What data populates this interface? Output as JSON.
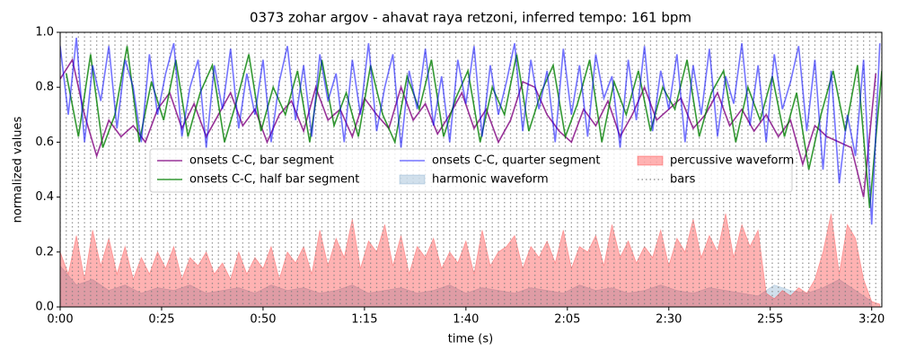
{
  "chart_data": {
    "type": "line",
    "title": "0373 zohar argov - ahavat raya retzoni, inferred tempo: 161 bpm",
    "xlabel": "time (s)",
    "ylabel": "normalized values",
    "xlim": [
      0,
      202.5
    ],
    "ylim": [
      0,
      1
    ],
    "xticks": [
      {
        "value": 0,
        "label": "0:00"
      },
      {
        "value": 25,
        "label": "0:25"
      },
      {
        "value": 50,
        "label": "0:50"
      },
      {
        "value": 75,
        "label": "1:15"
      },
      {
        "value": 100,
        "label": "1:40"
      },
      {
        "value": 125,
        "label": "2:05"
      },
      {
        "value": 150,
        "label": "2:30"
      },
      {
        "value": 175,
        "label": "2:55"
      },
      {
        "value": 200,
        "label": "3:20"
      }
    ],
    "yticks": [
      {
        "value": 0,
        "label": "0.0"
      },
      0.2,
      0.4,
      0.6,
      0.8,
      {
        "value": 1,
        "label": "1.0"
      }
    ],
    "legend": "center",
    "legend_columns": 3,
    "series": [
      {
        "name": "onsets C-C, bar segment",
        "kind": "line",
        "color": "#800080",
        "alpha": 0.8,
        "x": [
          0,
          3,
          6,
          9,
          12,
          15,
          18,
          21,
          24,
          27,
          30,
          33,
          36,
          39,
          42,
          45,
          48,
          51,
          54,
          57,
          60,
          63,
          66,
          69,
          72,
          75,
          78,
          81,
          84,
          87,
          90,
          93,
          96,
          99,
          102,
          105,
          108,
          111,
          114,
          117,
          120,
          123,
          126,
          129,
          132,
          135,
          138,
          141,
          144,
          147,
          150,
          153,
          156,
          159,
          162,
          165,
          168,
          171,
          174,
          177,
          180,
          183,
          186,
          189,
          192,
          195,
          198,
          201
        ],
        "values": [
          0.83,
          0.9,
          0.7,
          0.55,
          0.68,
          0.62,
          0.66,
          0.6,
          0.72,
          0.78,
          0.65,
          0.74,
          0.62,
          0.7,
          0.78,
          0.66,
          0.72,
          0.6,
          0.7,
          0.75,
          0.64,
          0.8,
          0.68,
          0.72,
          0.62,
          0.76,
          0.7,
          0.65,
          0.8,
          0.68,
          0.74,
          0.63,
          0.7,
          0.78,
          0.65,
          0.72,
          0.6,
          0.68,
          0.82,
          0.8,
          0.7,
          0.64,
          0.6,
          0.72,
          0.66,
          0.75,
          0.62,
          0.7,
          0.8,
          0.68,
          0.72,
          0.76,
          0.65,
          0.7,
          0.78,
          0.66,
          0.72,
          0.64,
          0.7,
          0.62,
          0.68,
          0.52,
          0.66,
          0.62,
          0.6,
          0.58,
          0.4,
          0.85
        ]
      },
      {
        "name": "onsets C-C, half bar segment",
        "kind": "line",
        "color": "#008000",
        "alpha": 0.8,
        "x": [
          1.5,
          4.5,
          7.5,
          10.5,
          13.5,
          16.5,
          19.5,
          22.5,
          25.5,
          28.5,
          31.5,
          34.5,
          37.5,
          40.5,
          43.5,
          46.5,
          49.5,
          52.5,
          55.5,
          58.5,
          61.5,
          64.5,
          67.5,
          70.5,
          73.5,
          76.5,
          79.5,
          82.5,
          85.5,
          88.5,
          91.5,
          94.5,
          97.5,
          100.5,
          103.5,
          106.5,
          109.5,
          112.5,
          115.5,
          118.5,
          121.5,
          124.5,
          127.5,
          130.5,
          133.5,
          136.5,
          139.5,
          142.5,
          145.5,
          148.5,
          151.5,
          154.5,
          157.5,
          160.5,
          163.5,
          166.5,
          169.5,
          172.5,
          175.5,
          178.5,
          181.5,
          184.5,
          187.5,
          190.5,
          193.5,
          196.5,
          199.5,
          202.5
        ],
        "values": [
          0.85,
          0.62,
          0.92,
          0.58,
          0.7,
          0.95,
          0.6,
          0.82,
          0.68,
          0.9,
          0.62,
          0.78,
          0.88,
          0.6,
          0.75,
          0.92,
          0.64,
          0.8,
          0.7,
          0.86,
          0.6,
          0.9,
          0.66,
          0.78,
          0.62,
          0.88,
          0.7,
          0.6,
          0.84,
          0.72,
          0.9,
          0.62,
          0.76,
          0.86,
          0.6,
          0.8,
          0.7,
          0.92,
          0.64,
          0.78,
          0.88,
          0.62,
          0.74,
          0.9,
          0.6,
          0.82,
          0.7,
          0.86,
          0.64,
          0.8,
          0.72,
          0.9,
          0.62,
          0.78,
          0.86,
          0.6,
          0.8,
          0.68,
          0.84,
          0.62,
          0.78,
          0.5,
          0.7,
          0.86,
          0.64,
          0.88,
          0.36,
          0.86
        ]
      },
      {
        "name": "onsets C-C, quarter segment",
        "kind": "line",
        "color": "#0000ff",
        "alpha": 0.55,
        "x": [
          0,
          2,
          4,
          6,
          8,
          10,
          12,
          14,
          16,
          18,
          20,
          22,
          24,
          26,
          28,
          30,
          32,
          34,
          36,
          38,
          40,
          42,
          44,
          46,
          48,
          50,
          52,
          54,
          56,
          58,
          60,
          62,
          64,
          66,
          68,
          70,
          72,
          74,
          76,
          78,
          80,
          82,
          84,
          86,
          88,
          90,
          92,
          94,
          96,
          98,
          100,
          102,
          104,
          106,
          108,
          110,
          112,
          114,
          116,
          118,
          120,
          122,
          124,
          126,
          128,
          130,
          132,
          134,
          136,
          138,
          140,
          142,
          144,
          146,
          148,
          150,
          152,
          154,
          156,
          158,
          160,
          162,
          164,
          166,
          168,
          170,
          172,
          174,
          176,
          178,
          180,
          182,
          184,
          186,
          188,
          190,
          192,
          194,
          196,
          198,
          200,
          202
        ],
        "values": [
          0.95,
          0.7,
          0.98,
          0.6,
          0.88,
          0.75,
          0.95,
          0.65,
          0.9,
          0.8,
          0.6,
          0.92,
          0.7,
          0.85,
          0.96,
          0.62,
          0.8,
          0.9,
          0.58,
          0.88,
          0.72,
          0.94,
          0.65,
          0.85,
          0.7,
          0.9,
          0.6,
          0.82,
          0.95,
          0.68,
          0.88,
          0.62,
          0.92,
          0.75,
          0.85,
          0.6,
          0.9,
          0.7,
          0.96,
          0.64,
          0.8,
          0.92,
          0.58,
          0.86,
          0.72,
          0.94,
          0.66,
          0.84,
          0.6,
          0.9,
          0.74,
          0.95,
          0.62,
          0.88,
          0.7,
          0.82,
          0.96,
          0.64,
          0.9,
          0.72,
          0.86,
          0.6,
          0.94,
          0.7,
          0.88,
          0.62,
          0.92,
          0.76,
          0.84,
          0.58,
          0.9,
          0.68,
          0.95,
          0.64,
          0.86,
          0.72,
          0.92,
          0.6,
          0.88,
          0.7,
          0.94,
          0.62,
          0.84,
          0.74,
          0.96,
          0.66,
          0.88,
          0.6,
          0.92,
          0.72,
          0.82,
          0.95,
          0.64,
          0.9,
          0.5,
          0.86,
          0.45,
          0.7,
          0.55,
          0.9,
          0.3,
          0.96
        ]
      },
      {
        "name": "harmonic waveform",
        "kind": "area",
        "color": "#4682b4",
        "alpha": 0.25,
        "x": [
          0,
          4,
          8,
          12,
          16,
          20,
          24,
          28,
          32,
          36,
          40,
          44,
          48,
          52,
          56,
          60,
          64,
          68,
          72,
          76,
          80,
          84,
          88,
          92,
          96,
          100,
          104,
          108,
          112,
          116,
          120,
          124,
          128,
          132,
          136,
          140,
          144,
          148,
          152,
          156,
          160,
          164,
          168,
          172,
          176,
          180,
          184,
          188,
          192,
          196,
          200
        ],
        "values": [
          0.15,
          0.08,
          0.1,
          0.06,
          0.08,
          0.05,
          0.07,
          0.06,
          0.08,
          0.05,
          0.06,
          0.07,
          0.05,
          0.08,
          0.06,
          0.07,
          0.05,
          0.06,
          0.08,
          0.05,
          0.06,
          0.07,
          0.05,
          0.06,
          0.08,
          0.05,
          0.07,
          0.06,
          0.05,
          0.07,
          0.06,
          0.05,
          0.08,
          0.06,
          0.07,
          0.05,
          0.06,
          0.08,
          0.06,
          0.05,
          0.07,
          0.06,
          0.05,
          0.04,
          0.08,
          0.06,
          0.05,
          0.07,
          0.1,
          0.06,
          0.02
        ]
      },
      {
        "name": "percussive waveform",
        "kind": "area",
        "color": "#ff0000",
        "alpha": 0.3,
        "x": [
          0,
          2,
          4,
          6,
          8,
          10,
          12,
          14,
          16,
          18,
          20,
          22,
          24,
          26,
          28,
          30,
          32,
          34,
          36,
          38,
          40,
          42,
          44,
          46,
          48,
          50,
          52,
          54,
          56,
          58,
          60,
          62,
          64,
          66,
          68,
          70,
          72,
          74,
          76,
          78,
          80,
          82,
          84,
          86,
          88,
          90,
          92,
          94,
          96,
          98,
          100,
          102,
          104,
          106,
          108,
          110,
          112,
          114,
          116,
          118,
          120,
          122,
          124,
          126,
          128,
          130,
          132,
          134,
          136,
          138,
          140,
          142,
          144,
          146,
          148,
          150,
          152,
          154,
          156,
          158,
          160,
          162,
          164,
          166,
          168,
          170,
          172,
          174,
          176,
          178,
          180,
          182,
          184,
          186,
          188,
          190,
          192,
          194,
          196,
          198,
          200,
          202
        ],
        "values": [
          0.2,
          0.12,
          0.26,
          0.1,
          0.28,
          0.15,
          0.25,
          0.12,
          0.22,
          0.1,
          0.18,
          0.12,
          0.2,
          0.14,
          0.22,
          0.1,
          0.18,
          0.15,
          0.2,
          0.12,
          0.16,
          0.1,
          0.2,
          0.12,
          0.18,
          0.14,
          0.22,
          0.1,
          0.2,
          0.16,
          0.22,
          0.12,
          0.28,
          0.15,
          0.25,
          0.18,
          0.32,
          0.14,
          0.24,
          0.2,
          0.3,
          0.15,
          0.26,
          0.12,
          0.22,
          0.18,
          0.25,
          0.14,
          0.2,
          0.16,
          0.24,
          0.12,
          0.28,
          0.15,
          0.2,
          0.22,
          0.26,
          0.14,
          0.22,
          0.18,
          0.24,
          0.16,
          0.28,
          0.14,
          0.22,
          0.2,
          0.26,
          0.15,
          0.3,
          0.18,
          0.24,
          0.16,
          0.22,
          0.18,
          0.28,
          0.15,
          0.25,
          0.2,
          0.32,
          0.18,
          0.26,
          0.2,
          0.34,
          0.18,
          0.3,
          0.22,
          0.28,
          0.05,
          0.03,
          0.06,
          0.04,
          0.07,
          0.05,
          0.1,
          0.2,
          0.34,
          0.12,
          0.3,
          0.25,
          0.1,
          0.02,
          0.01
        ]
      },
      {
        "name": "bars",
        "kind": "vlines",
        "color": "#808080",
        "alpha": 0.8,
        "x": [
          0,
          1.5,
          3,
          4.5,
          6,
          7.5,
          9,
          10.5,
          12,
          13.5,
          15,
          16.5,
          18,
          19.5,
          21,
          22.5,
          24,
          25.5,
          27,
          28.5,
          30,
          31.5,
          33,
          34.5,
          36,
          37.5,
          39,
          40.5,
          42,
          43.5,
          45,
          46.5,
          48,
          49.5,
          51,
          52.5,
          54,
          55.5,
          57,
          58.5,
          60,
          61.5,
          63,
          64.5,
          66,
          67.5,
          69,
          70.5,
          72,
          73.5,
          75,
          76.5,
          78,
          79.5,
          81,
          82.5,
          84,
          85.5,
          87,
          88.5,
          90,
          91.5,
          93,
          94.5,
          96,
          97.5,
          99,
          100.5,
          102,
          103.5,
          105,
          106.5,
          108,
          109.5,
          111,
          112.5,
          114,
          115.5,
          117,
          118.5,
          120,
          121.5,
          123,
          124.5,
          126,
          127.5,
          129,
          130.5,
          132,
          133.5,
          135,
          136.5,
          138,
          139.5,
          141,
          142.5,
          144,
          145.5,
          147,
          148.5,
          150,
          151.5,
          153,
          154.5,
          156,
          157.5,
          159,
          160.5,
          162,
          163.5,
          165,
          166.5,
          168,
          169.5,
          171,
          172.5,
          174,
          175.5,
          177,
          178.5,
          180,
          181.5,
          183,
          184.5,
          186,
          187.5,
          189,
          190.5,
          192,
          193.5,
          195,
          196.5,
          198,
          199.5,
          201,
          202.5
        ]
      }
    ]
  }
}
